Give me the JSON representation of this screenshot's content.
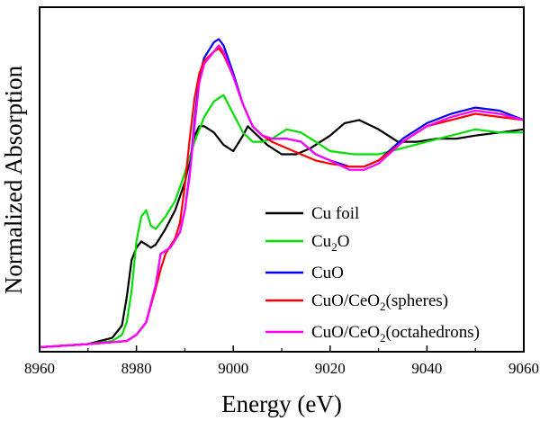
{
  "chart_data": {
    "type": "line",
    "title": "",
    "xlabel": "Energy (eV)",
    "ylabel": "Normalized Absorption",
    "xlim": [
      8960,
      9060
    ],
    "ylim": [
      0,
      1.0
    ],
    "xticks": [
      "8960",
      "8980",
      "9000",
      "9020",
      "9040",
      "9060"
    ],
    "grid": false,
    "legend_position": "lower-right",
    "series": [
      {
        "name": "Cu foil",
        "label_main": "Cu foil",
        "label_sub": "",
        "label_tail": "",
        "color": "#000000",
        "x": [
          8960,
          8970,
          8975,
          8977,
          8978,
          8979,
          8980,
          8981,
          8982,
          8983,
          8984,
          8986,
          8988,
          8990,
          8991,
          8992,
          8993,
          8994,
          8996,
          8998,
          9000,
          9002,
          9003,
          9005,
          9007,
          9010,
          9013,
          9016,
          9020,
          9023,
          9026,
          9030,
          9034,
          9038,
          9042,
          9046,
          9050,
          9055,
          9060
        ],
        "y": [
          0.0,
          0.01,
          0.03,
          0.07,
          0.16,
          0.28,
          0.32,
          0.34,
          0.33,
          0.32,
          0.33,
          0.38,
          0.44,
          0.53,
          0.6,
          0.68,
          0.71,
          0.71,
          0.69,
          0.65,
          0.63,
          0.68,
          0.71,
          0.68,
          0.65,
          0.62,
          0.62,
          0.64,
          0.68,
          0.72,
          0.73,
          0.7,
          0.66,
          0.66,
          0.67,
          0.67,
          0.68,
          0.69,
          0.7
        ]
      },
      {
        "name": "Cu2O",
        "label_main": "Cu",
        "label_sub": "2",
        "label_tail": "O",
        "color": "#00e000",
        "x": [
          8960,
          8970,
          8975,
          8977,
          8978,
          8979,
          8980,
          8981,
          8982,
          8983,
          8984,
          8986,
          8988,
          8990,
          8992,
          8994,
          8996,
          8998,
          9000,
          9002,
          9004,
          9006,
          9008,
          9011,
          9014,
          9017,
          9020,
          9025,
          9030,
          9035,
          9040,
          9045,
          9050,
          9055,
          9060
        ],
        "y": [
          0.0,
          0.01,
          0.02,
          0.04,
          0.08,
          0.18,
          0.34,
          0.42,
          0.44,
          0.39,
          0.38,
          0.42,
          0.47,
          0.56,
          0.66,
          0.74,
          0.79,
          0.81,
          0.75,
          0.69,
          0.66,
          0.66,
          0.67,
          0.7,
          0.69,
          0.66,
          0.63,
          0.62,
          0.62,
          0.64,
          0.66,
          0.68,
          0.7,
          0.69,
          0.69
        ]
      },
      {
        "name": "CuO",
        "label_main": "CuO",
        "label_sub": "",
        "label_tail": "",
        "color": "#0000ff",
        "x": [
          8960,
          8970,
          8978,
          8980,
          8982,
          8984,
          8985,
          8987,
          8989,
          8990,
          8991,
          8992,
          8993,
          8994,
          8996,
          8997,
          8998,
          9000,
          9002,
          9004,
          9006,
          9008,
          9011,
          9014,
          9017,
          9020,
          9024,
          9027,
          9030,
          9035,
          9040,
          9045,
          9050,
          9055,
          9060
        ],
        "y": [
          0.0,
          0.01,
          0.02,
          0.04,
          0.08,
          0.2,
          0.3,
          0.32,
          0.37,
          0.44,
          0.56,
          0.73,
          0.87,
          0.93,
          0.98,
          0.99,
          0.97,
          0.88,
          0.78,
          0.71,
          0.68,
          0.67,
          0.67,
          0.66,
          0.62,
          0.6,
          0.58,
          0.58,
          0.6,
          0.67,
          0.72,
          0.75,
          0.77,
          0.76,
          0.73
        ]
      },
      {
        "name": "CuO/CeO2(spheres)",
        "label_main": "CuO/CeO",
        "label_sub": "2",
        "label_tail": "(spheres)",
        "color": "#ff0000",
        "x": [
          8960,
          8970,
          8978,
          8980,
          8982,
          8984,
          8985,
          8986,
          8988,
          8989,
          8990,
          8991,
          8992,
          8993,
          8994,
          8996,
          8997,
          8998,
          9000,
          9002,
          9004,
          9006,
          9008,
          9011,
          9014,
          9017,
          9020,
          9024,
          9027,
          9030,
          9035,
          9040,
          9045,
          9050,
          9055,
          9060
        ],
        "y": [
          0.0,
          0.01,
          0.02,
          0.04,
          0.08,
          0.19,
          0.25,
          0.3,
          0.35,
          0.4,
          0.52,
          0.67,
          0.8,
          0.88,
          0.92,
          0.95,
          0.96,
          0.94,
          0.87,
          0.78,
          0.71,
          0.68,
          0.66,
          0.64,
          0.62,
          0.6,
          0.59,
          0.58,
          0.58,
          0.6,
          0.66,
          0.71,
          0.73,
          0.75,
          0.74,
          0.73
        ]
      },
      {
        "name": "CuO/CeO2(octahedrons)",
        "label_main": "CuO/CeO",
        "label_sub": "2",
        "label_tail": "(octahedrons)",
        "color": "#ff00ff",
        "x": [
          8960,
          8970,
          8978,
          8980,
          8982,
          8984,
          8985,
          8987,
          8989,
          8990,
          8991,
          8992,
          8993,
          8994,
          8996,
          8997,
          8998,
          9000,
          9002,
          9004,
          9006,
          9008,
          9011,
          9014,
          9017,
          9020,
          9024,
          9027,
          9030,
          9035,
          9040,
          9045,
          9050,
          9055,
          9060
        ],
        "y": [
          0.0,
          0.01,
          0.02,
          0.04,
          0.08,
          0.2,
          0.3,
          0.32,
          0.37,
          0.44,
          0.55,
          0.71,
          0.85,
          0.91,
          0.95,
          0.97,
          0.95,
          0.87,
          0.78,
          0.71,
          0.68,
          0.67,
          0.67,
          0.66,
          0.62,
          0.6,
          0.57,
          0.57,
          0.59,
          0.66,
          0.71,
          0.74,
          0.76,
          0.75,
          0.73
        ]
      }
    ]
  }
}
